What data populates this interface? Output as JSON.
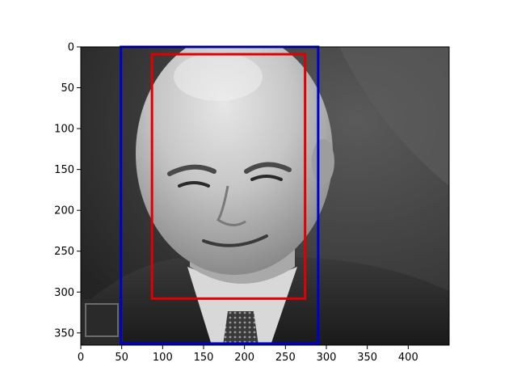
{
  "figure": {
    "subject": "grayscale portrait photograph of an older bald man in a suit and patterned tie",
    "image_extent": {
      "x": [
        0,
        450
      ],
      "y": [
        0,
        365
      ]
    },
    "x_ticks": [
      0,
      50,
      100,
      150,
      200,
      250,
      300,
      350,
      400
    ],
    "y_ticks": [
      0,
      50,
      100,
      150,
      200,
      250,
      300,
      350
    ],
    "boxes": [
      {
        "color": "#0000cc",
        "x0": 49,
        "y0": 0,
        "x1": 290,
        "y1": 363
      },
      {
        "color": "#e00000",
        "x0": 87,
        "y0": 9,
        "x1": 274,
        "y1": 308
      }
    ]
  }
}
